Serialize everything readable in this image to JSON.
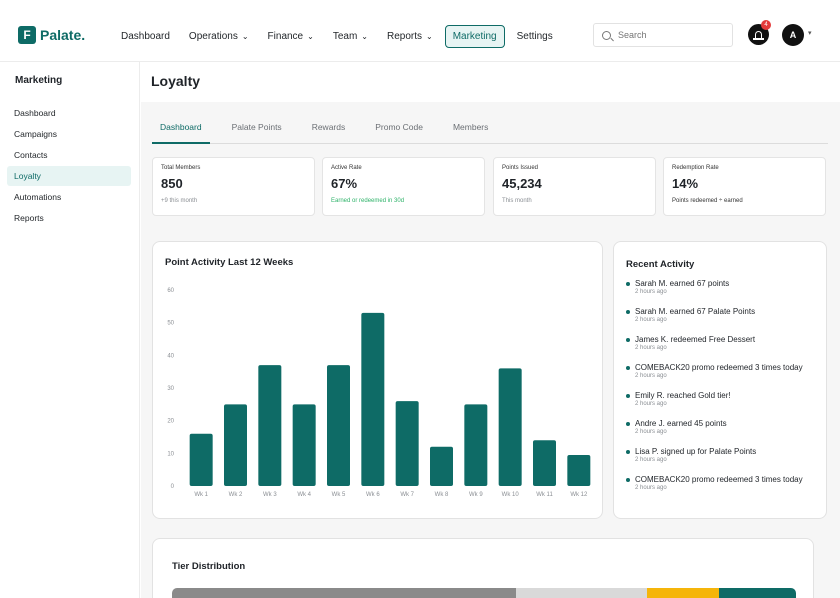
{
  "brand": {
    "name": "Palate.",
    "mark": "F"
  },
  "nav": [
    {
      "label": "Dashboard",
      "chevron": false,
      "active": false
    },
    {
      "label": "Operations",
      "chevron": true,
      "active": false
    },
    {
      "label": "Finance",
      "chevron": true,
      "active": false
    },
    {
      "label": "Team",
      "chevron": true,
      "active": false
    },
    {
      "label": "Reports",
      "chevron": true,
      "active": false
    },
    {
      "label": "Marketing",
      "chevron": false,
      "active": true
    },
    {
      "label": "Settings",
      "chevron": false,
      "active": false
    }
  ],
  "search": {
    "placeholder": "Search"
  },
  "notifications": {
    "count": "4"
  },
  "user": {
    "initial": "A"
  },
  "sidebar": {
    "title": "Marketing",
    "items": [
      {
        "label": "Dashboard",
        "active": false
      },
      {
        "label": "Campaigns",
        "active": false
      },
      {
        "label": "Contacts",
        "active": false
      },
      {
        "label": "Loyalty",
        "active": true
      },
      {
        "label": "Automations",
        "active": false
      },
      {
        "label": "Reports",
        "active": false
      }
    ]
  },
  "page": {
    "title": "Loyalty"
  },
  "tabs": [
    {
      "label": "Dashboard",
      "active": true
    },
    {
      "label": "Palate Points",
      "active": false
    },
    {
      "label": "Rewards",
      "active": false
    },
    {
      "label": "Promo Code",
      "active": false
    },
    {
      "label": "Members",
      "active": false
    }
  ],
  "stats": [
    {
      "label": "Total Members",
      "value": "850",
      "sub": "+9 this month",
      "tone": "muted"
    },
    {
      "label": "Active Rate",
      "value": "67%",
      "sub": "Earned or redeemed in 30d",
      "tone": "green"
    },
    {
      "label": "Points Issued",
      "value": "45,234",
      "sub": "This month",
      "tone": "muted"
    },
    {
      "label": "Redemption Rate",
      "value": "14%",
      "sub": "Points redeemed ÷ earned",
      "tone": "dark"
    }
  ],
  "chart_data": {
    "type": "bar",
    "title": "Point Activity Last 12 Weeks",
    "categories": [
      "Wk 1",
      "Wk 2",
      "Wk 3",
      "Wk 4",
      "Wk 5",
      "Wk 6",
      "Wk 7",
      "Wk 8",
      "Wk 9",
      "Wk 10",
      "Wk 11",
      "Wk 12"
    ],
    "values": [
      16,
      25,
      37,
      25,
      37,
      53,
      26,
      12,
      25,
      36,
      14,
      9.5
    ],
    "ylim": [
      0,
      60
    ],
    "yticks": [
      0,
      10,
      20,
      30,
      40,
      50,
      60
    ],
    "color": "#0e6b66",
    "grid": false
  },
  "activity": {
    "title": "Recent Activity",
    "items": [
      {
        "text": "Sarah M. earned 67 points",
        "time": "2 hours ago"
      },
      {
        "text": "Sarah M. earned 67 Palate Points",
        "time": "2 hours ago"
      },
      {
        "text": "James K. redeemed Free Dessert",
        "time": "2 hours ago"
      },
      {
        "text": "COMEBACK20 promo redeemed 3 times today",
        "time": "2 hours ago"
      },
      {
        "text": "Emily R. reached Gold tier!",
        "time": "2 hours ago"
      },
      {
        "text": "Andre J. earned 45 points",
        "time": "2 hours ago"
      },
      {
        "text": "Lisa P. signed up for Palate Points",
        "time": "2 hours ago"
      },
      {
        "text": "COMEBACK20 promo redeemed 3 times today",
        "time": "2 hours ago"
      }
    ]
  },
  "tiers": {
    "title": "Tier Distribution",
    "segments": [
      {
        "share": 0.552,
        "color": "#8a8a8a"
      },
      {
        "share": 0.21,
        "color": "#d9d9d9"
      },
      {
        "share": 0.114,
        "color": "#f5b50a"
      },
      {
        "share": 0.124,
        "color": "#0e6b66"
      }
    ]
  }
}
